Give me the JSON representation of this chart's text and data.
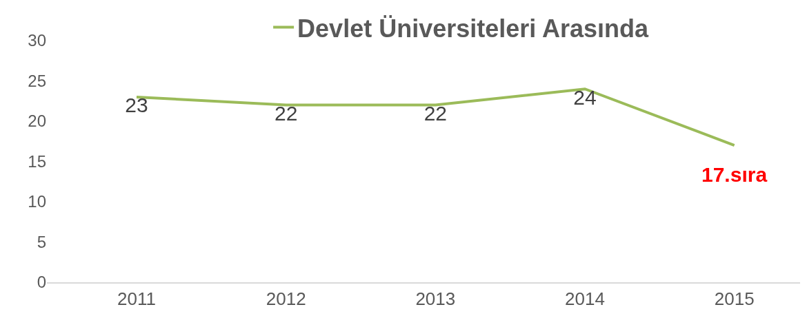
{
  "chart_data": {
    "type": "line",
    "categories": [
      "2011",
      "2012",
      "2013",
      "2014",
      "2015"
    ],
    "series": [
      {
        "name": "Devlet Üniversiteleri Arasında",
        "color": "#9bbb59",
        "values": [
          23,
          22,
          22,
          24,
          17
        ],
        "value_labels": [
          "23",
          "22",
          "22",
          "24",
          null
        ]
      }
    ],
    "annotations": [
      {
        "text": "17.sıra",
        "x": "2015",
        "y": 17
      }
    ],
    "ylim": [
      0,
      30
    ],
    "yticks": [
      0,
      5,
      10,
      15,
      20,
      25,
      30
    ],
    "grid": false,
    "legend": "top",
    "marker": "none"
  }
}
